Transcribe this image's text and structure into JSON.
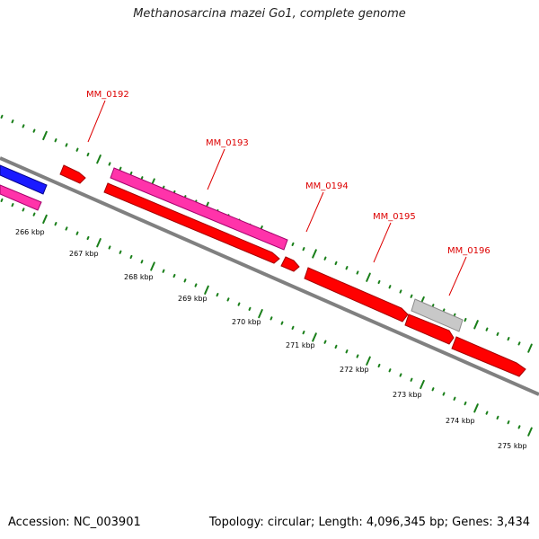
{
  "title": "Methanosarcina mazei Go1, complete genome",
  "footer": {
    "accession": "Accession: NC_003901",
    "summary": "Topology: circular; Length: 4,096,345 bp; Genes: 3,434"
  },
  "colors": {
    "backbone": "#808080",
    "tick": "#1a7f1a",
    "label": "#dd0000",
    "leader": "#dd0000",
    "red_gene": "#ff0000",
    "magenta_gene": "#ff33aa",
    "blue_gene": "#1a1aff",
    "gray_gene": "#c0c0c0"
  },
  "gene_labels": [
    "MM_0192",
    "MM_0193",
    "MM_0194",
    "MM_0195",
    "MM_0196"
  ],
  "kbp_labels": [
    "266 kbp",
    "267 kbp",
    "268 kbp",
    "269 kbp",
    "270 kbp",
    "271 kbp",
    "272 kbp",
    "273 kbp",
    "274 kbp",
    "275 kbp"
  ]
}
